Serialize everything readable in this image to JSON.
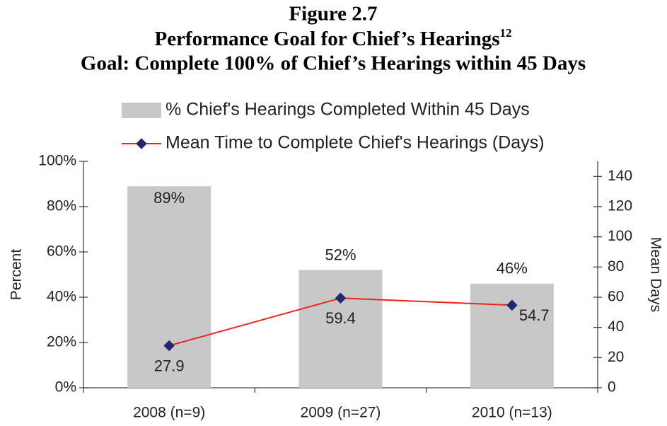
{
  "chart_data": {
    "type": "bar_line",
    "title": "Figure 2.7",
    "subtitle": "Performance Goal for Chief’s Hearings",
    "subtitle_footnote": "12",
    "goal": "Goal: Complete 100% of Chief’s Hearings within 45 Days",
    "categories": [
      "2008 (n=9)",
      "2009 (n=27)",
      "2010 (n=13)"
    ],
    "series": [
      {
        "name": "% Chief's Hearings Completed Within 45 Days",
        "color": "#c8c8c8",
        "kind": "bar",
        "values": [
          89,
          52,
          46
        ],
        "value_labels": [
          "89%",
          "52%",
          "46%"
        ]
      },
      {
        "name": "Mean Time to Complete Chief's Hearings (Days)",
        "color": "#e8261e",
        "marker_color": "#1f2a6b",
        "kind": "line",
        "axis": "y2",
        "values": [
          27.9,
          59.4,
          54.7
        ]
      }
    ],
    "ylabel": "Percent",
    "y2label": "Mean Days",
    "ylim": [
      0,
      100
    ],
    "yticks": [
      {
        "value": 0,
        "label": "0%"
      },
      {
        "value": 20,
        "label": "20%"
      },
      {
        "value": 40,
        "label": "40%"
      },
      {
        "value": 60,
        "label": "60%"
      },
      {
        "value": 80,
        "label": "80%"
      },
      {
        "value": 100,
        "label": "100%"
      }
    ],
    "y2lim": [
      0,
      150
    ],
    "y2ticks": [
      0,
      20,
      40,
      60,
      80,
      100,
      120,
      140
    ],
    "legend": "top"
  }
}
